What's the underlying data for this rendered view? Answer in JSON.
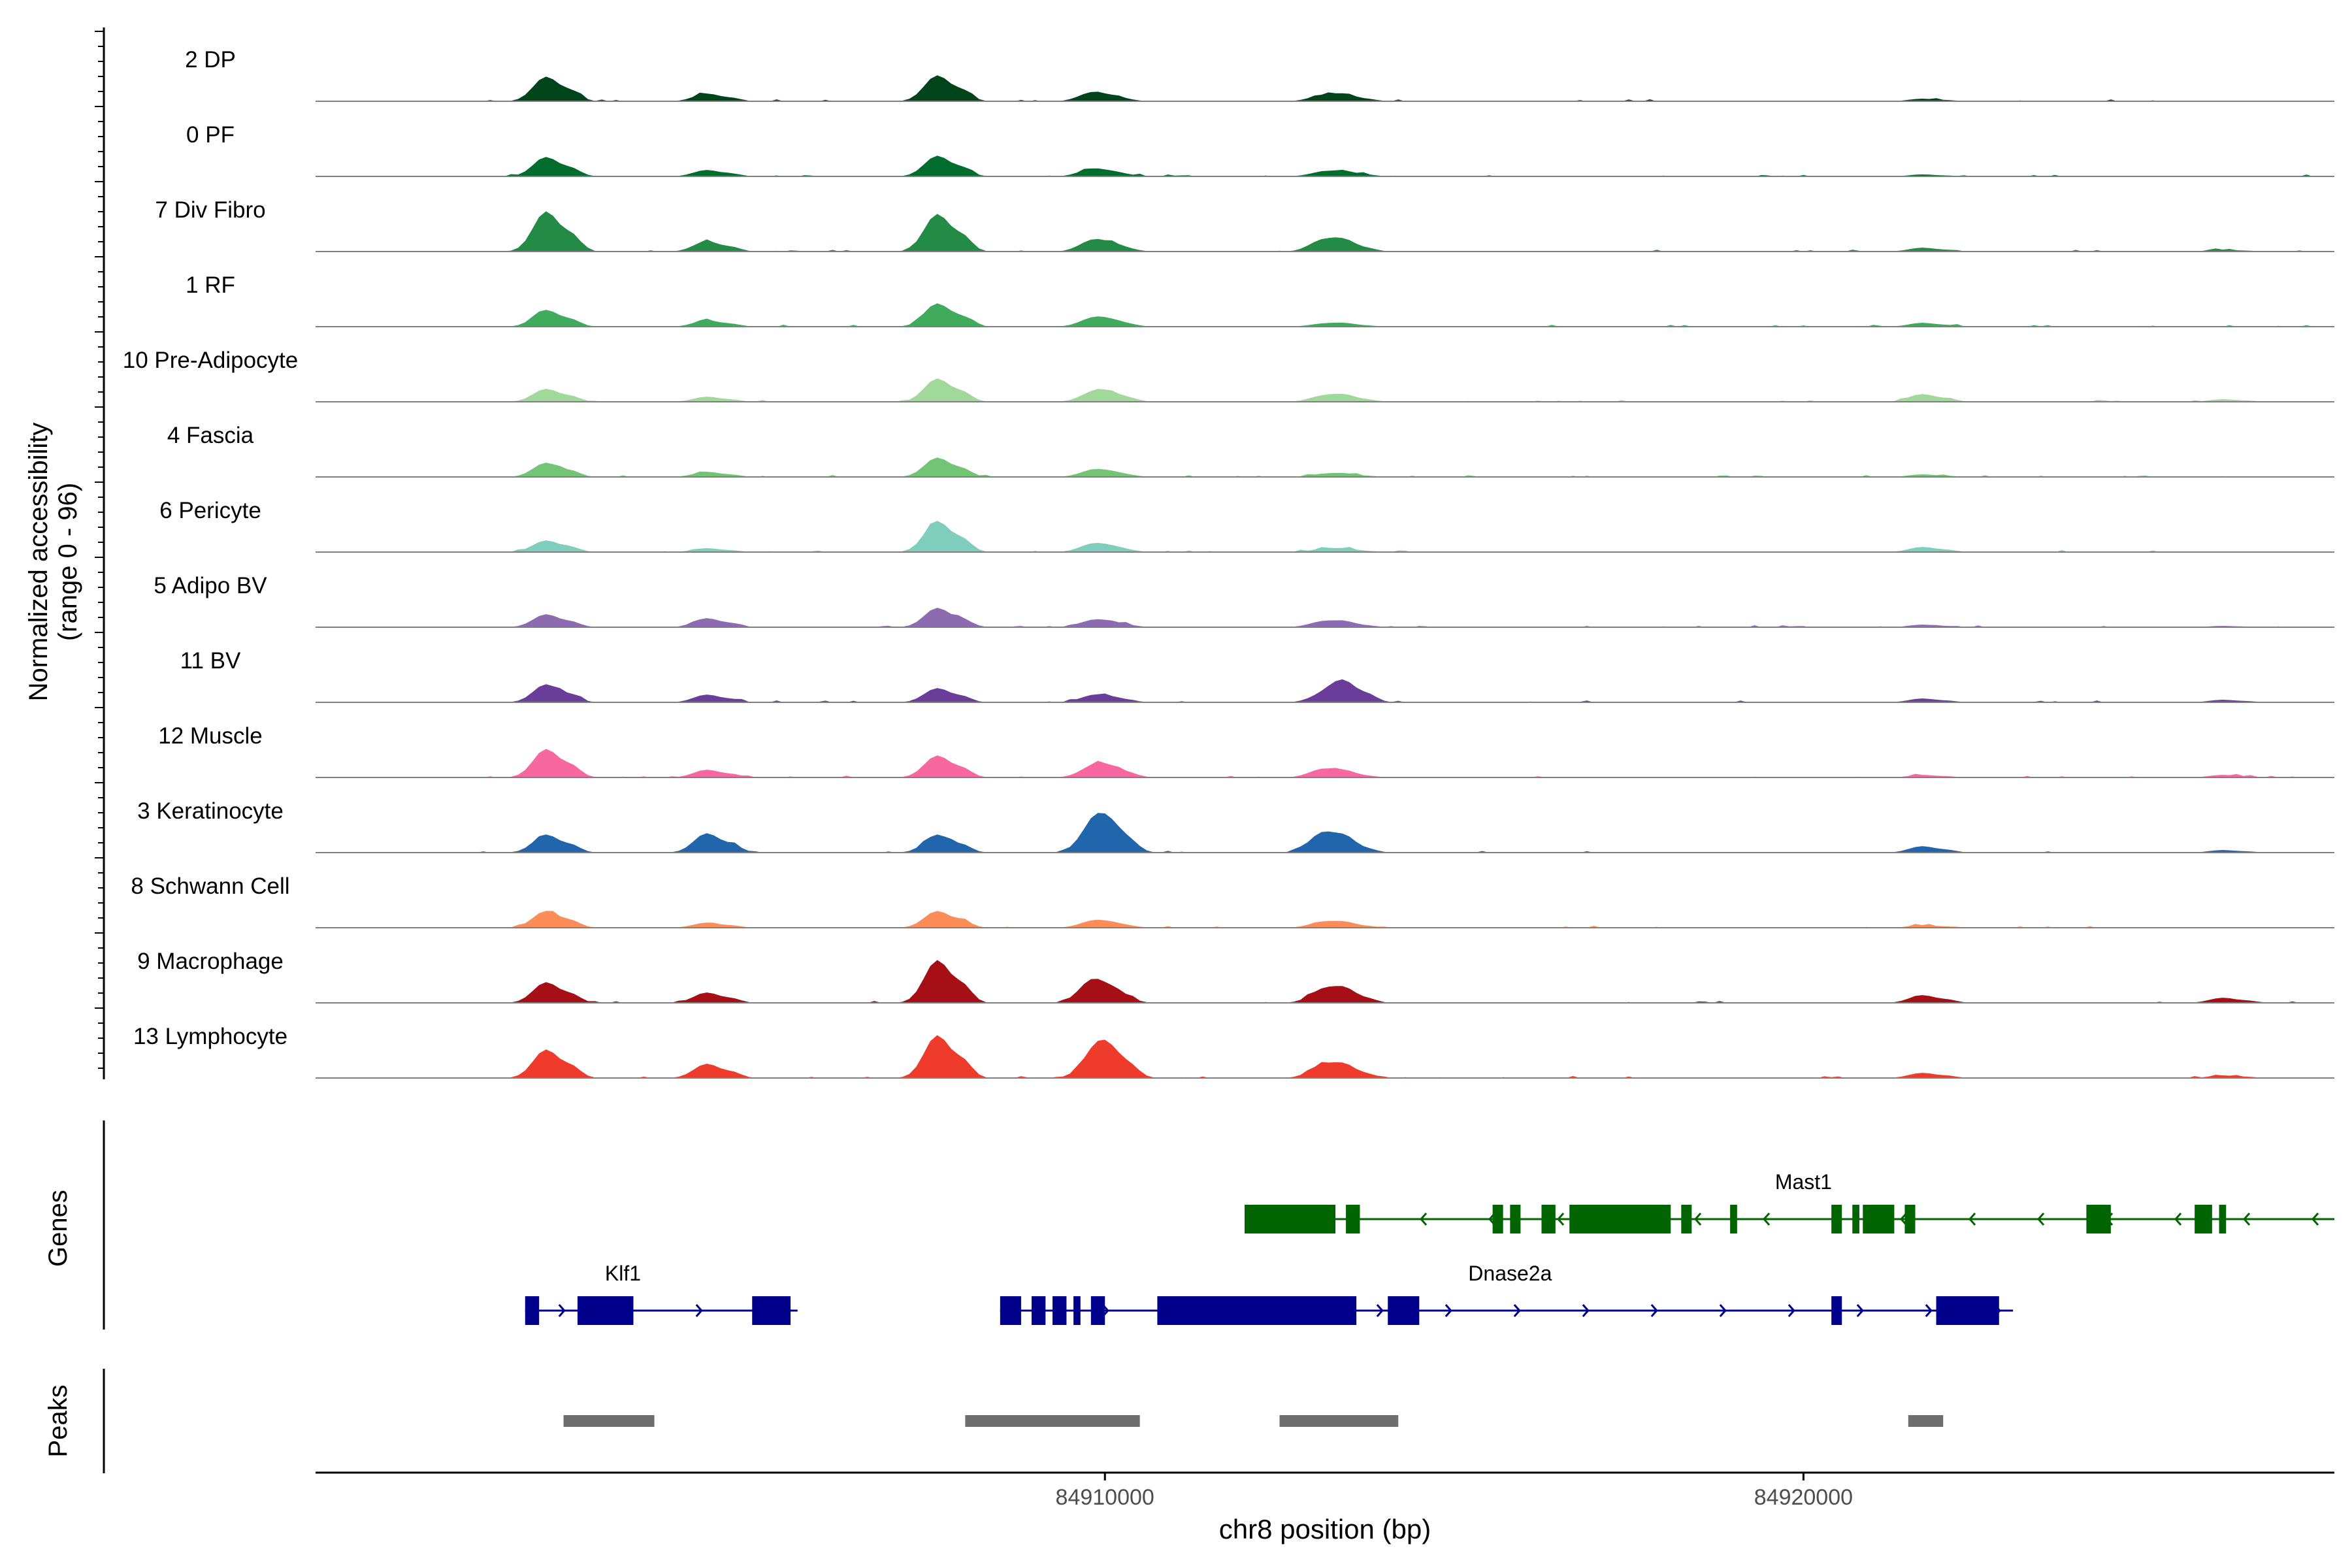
{
  "chart_data": {
    "type": "area",
    "title": "",
    "xlabel": "chr8 position (bp)",
    "ylabel_lines": [
      "Normalized accessibility",
      "(range 0 - 96)"
    ],
    "xlim": [
      84898700,
      84927600
    ],
    "ylim": [
      0,
      96
    ],
    "x_ticks": [
      84910000,
      84920000
    ],
    "x_tick_labels": [
      "84910000",
      "84920000"
    ],
    "bin_size_bp": 100,
    "peak_centers": [
      84902000,
      84904300,
      84907600,
      84909800,
      84910000,
      84913100,
      84913400,
      84921700,
      84926000
    ],
    "tracks": [
      {
        "name": "2 DP",
        "color": "#00441b",
        "heights": [
          38,
          12,
          40,
          12,
          4,
          8,
          8,
          4,
          0
        ]
      },
      {
        "name": "0 PF",
        "color": "#006d2c",
        "heights": [
          30,
          10,
          32,
          10,
          4,
          6,
          6,
          3,
          0
        ]
      },
      {
        "name": "7 Div Fibro",
        "color": "#238b45",
        "heights": [
          62,
          16,
          58,
          14,
          8,
          16,
          12,
          6,
          3
        ]
      },
      {
        "name": "1 RF",
        "color": "#41ab5d",
        "heights": [
          26,
          10,
          36,
          10,
          8,
          4,
          4,
          6,
          0
        ]
      },
      {
        "name": "10 Pre-Adipocyte",
        "color": "#a1d99b",
        "heights": [
          20,
          8,
          36,
          10,
          12,
          8,
          8,
          12,
          4
        ]
      },
      {
        "name": "4 Fascia",
        "color": "#74c476",
        "heights": [
          22,
          8,
          30,
          8,
          6,
          4,
          4,
          4,
          0
        ]
      },
      {
        "name": "6 Pericyte",
        "color": "#7fcdbb",
        "heights": [
          18,
          6,
          48,
          10,
          6,
          4,
          4,
          8,
          0
        ]
      },
      {
        "name": "5 Adipo BV",
        "color": "#8c6bb1",
        "heights": [
          20,
          14,
          30,
          8,
          6,
          8,
          6,
          4,
          2
        ]
      },
      {
        "name": "11 BV",
        "color": "#6a3d9a",
        "heights": [
          28,
          12,
          22,
          8,
          6,
          10,
          30,
          6,
          4
        ]
      },
      {
        "name": "12 Muscle",
        "color": "#f768a1",
        "heights": [
          44,
          12,
          34,
          12,
          14,
          12,
          6,
          4,
          4
        ]
      },
      {
        "name": "3 Keratinocyte",
        "color": "#2166ac",
        "heights": [
          28,
          30,
          28,
          30,
          40,
          28,
          14,
          10,
          4
        ]
      },
      {
        "name": "8 Schwann Cell",
        "color": "#fc8d59",
        "heights": [
          26,
          8,
          26,
          8,
          6,
          8,
          6,
          4,
          0
        ]
      },
      {
        "name": "9 Macrophage",
        "color": "#a50f15",
        "heights": [
          32,
          16,
          66,
          30,
          12,
          18,
          16,
          12,
          8
        ]
      },
      {
        "name": "13 Lymphocyte",
        "color": "#ef3b2c",
        "heights": [
          44,
          22,
          66,
          22,
          44,
          18,
          14,
          8,
          4
        ]
      }
    ],
    "genes_label": "Genes",
    "genes": [
      {
        "name": "Mast1",
        "strand": "-",
        "color": "#006400",
        "row": 0,
        "start": 84912000,
        "end": 84927600,
        "exons": [
          [
            84912000,
            84913300
          ],
          [
            84913450,
            84913650
          ],
          [
            84915550,
            84915700
          ],
          [
            84915800,
            84915950
          ],
          [
            84916250,
            84916450
          ],
          [
            84916650,
            84918100
          ],
          [
            84918250,
            84918400
          ],
          [
            84918950,
            84919050
          ],
          [
            84920400,
            84920550
          ],
          [
            84920700,
            84920800
          ],
          [
            84920850,
            84921300
          ],
          [
            84921450,
            84921600
          ],
          [
            84924050,
            84924400
          ],
          [
            84925600,
            84925850
          ],
          [
            84925950,
            84926050
          ]
        ]
      },
      {
        "name": "Klf1",
        "strand": "+",
        "color": "#00008b",
        "row": 1,
        "start": 84901700,
        "end": 84905600,
        "exons": [
          [
            84901700,
            84901900
          ],
          [
            84902450,
            84903250
          ],
          [
            84904950,
            84905500
          ]
        ]
      },
      {
        "name": "Dnase2a",
        "strand": "+",
        "color": "#00008b",
        "row": 1,
        "start": 84908500,
        "end": 84923000,
        "exons": [
          [
            84908500,
            84908800
          ],
          [
            84908950,
            84909150
          ],
          [
            84909250,
            84909450
          ],
          [
            84909550,
            84909650
          ],
          [
            84909800,
            84910000
          ],
          [
            84910750,
            84913600
          ],
          [
            84914050,
            84914500
          ],
          [
            84920400,
            84920550
          ],
          [
            84921900,
            84922800
          ]
        ]
      }
    ],
    "peaks_label": "Peaks",
    "peaks": [
      [
        84902250,
        84903550
      ],
      [
        84908000,
        84910500
      ],
      [
        84912500,
        84914200
      ],
      [
        84921500,
        84922000
      ]
    ]
  }
}
